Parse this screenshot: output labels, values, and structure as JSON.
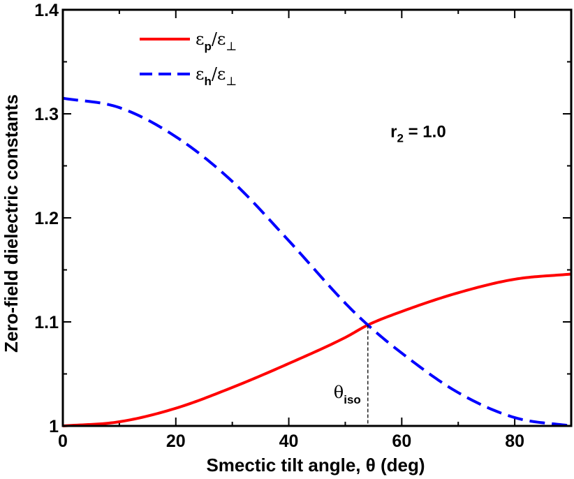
{
  "chart_data": {
    "type": "line",
    "title": "",
    "xlabel": "Smectic tilt angle, θ  (deg)",
    "ylabel": "Zero-field dielectric constants",
    "xlim": [
      0,
      90
    ],
    "ylim": [
      1.0,
      1.4
    ],
    "xticks": [
      0,
      20,
      40,
      60,
      80
    ],
    "xtick_labels": [
      "0",
      "20",
      "40",
      "60",
      "80"
    ],
    "yticks": [
      1.0,
      1.1,
      1.2,
      1.3,
      1.4
    ],
    "ytick_labels": [
      "1",
      "1.1",
      "1.2",
      "1.3",
      "1.4"
    ],
    "grid": false,
    "legend_position": "top-left",
    "series": [
      {
        "name": "εp/ε⊥",
        "legend_main": "ε",
        "legend_sub": "p",
        "legend_rest": "/ε",
        "legend_sub2": "⊥",
        "color": "#ff0000",
        "style": "solid",
        "x": [
          0,
          10,
          20,
          30,
          40,
          50,
          54,
          60,
          70,
          80,
          90
        ],
        "y": [
          1.0,
          1.004,
          1.017,
          1.037,
          1.06,
          1.085,
          1.097,
          1.11,
          1.128,
          1.141,
          1.146
        ]
      },
      {
        "name": "εh/ε⊥",
        "legend_main": "ε",
        "legend_sub": "h",
        "legend_rest": "/ε",
        "legend_sub2": "⊥",
        "color": "#0000ff",
        "style": "dashed",
        "x": [
          0,
          10,
          20,
          30,
          40,
          50,
          54,
          60,
          70,
          80,
          90
        ],
        "y": [
          1.315,
          1.306,
          1.278,
          1.235,
          1.178,
          1.118,
          1.097,
          1.07,
          1.032,
          1.008,
          1.0
        ]
      }
    ],
    "annotations": {
      "param_main": "r",
      "param_sub": "2",
      "param_rest": " = 1.0",
      "param_x": 58,
      "param_y": 1.283,
      "iso_main": "θ",
      "iso_sub": "iso",
      "iso_x": 54,
      "iso_y": 1.097
    }
  }
}
